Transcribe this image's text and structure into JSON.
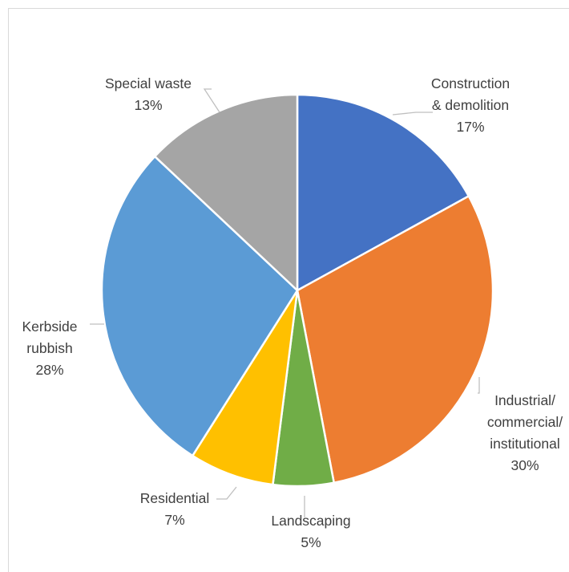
{
  "chart_data": {
    "type": "pie",
    "title": "",
    "slices": [
      {
        "name": "Construction & demolition",
        "label_lines": [
          "Construction",
          "& demolition"
        ],
        "value": 17,
        "value_label": "17%",
        "color": "#4472C4"
      },
      {
        "name": "Industrial/ commercial/ institutional",
        "label_lines": [
          "Industrial/",
          "commercial/",
          "institutional"
        ],
        "value": 30,
        "value_label": "30%",
        "color": "#ED7D31"
      },
      {
        "name": "Landscaping",
        "label_lines": [
          "Landscaping"
        ],
        "value": 5,
        "value_label": "5%",
        "color": "#70AD47"
      },
      {
        "name": "Residential",
        "label_lines": [
          "Residential"
        ],
        "value": 7,
        "value_label": "7%",
        "color": "#FFC000"
      },
      {
        "name": "Kerbside rubbish",
        "label_lines": [
          "Kerbside",
          "rubbish"
        ],
        "value": 28,
        "value_label": "28%",
        "color": "#5B9BD5"
      },
      {
        "name": "Special waste",
        "label_lines": [
          "Special waste"
        ],
        "value": 13,
        "value_label": "13%",
        "color": "#A5A5A5"
      }
    ],
    "start_angle": "12 o'clock",
    "direction": "clockwise",
    "legend": "none",
    "label_color": "#404040",
    "leader_line_color": "#BFBFBF"
  }
}
